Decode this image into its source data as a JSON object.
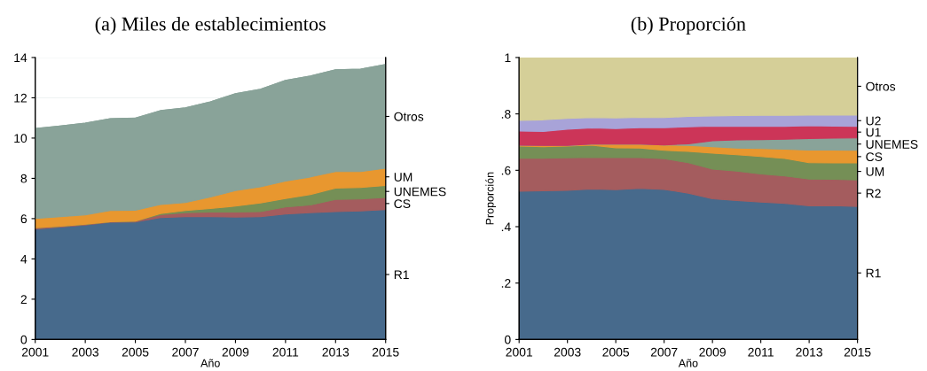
{
  "chart_data": [
    {
      "type": "area",
      "stacked": true,
      "title": "(a) Miles de establecimientos",
      "xlabel": "Año",
      "x": [
        2001,
        2002,
        2003,
        2004,
        2005,
        2006,
        2007,
        2008,
        2009,
        2010,
        2011,
        2012,
        2013,
        2014,
        2015
      ],
      "xlim": [
        2001,
        2015
      ],
      "xticks": [
        2001,
        2003,
        2005,
        2007,
        2009,
        2011,
        2013,
        2015
      ],
      "ylim": [
        0,
        14
      ],
      "yticks": [
        0,
        2,
        4,
        6,
        8,
        10,
        12,
        14
      ],
      "grid": "y",
      "series": [
        {
          "name": "R1",
          "color": "#476a8c",
          "values": [
            5.48,
            5.58,
            5.68,
            5.82,
            5.83,
            6.05,
            6.1,
            6.1,
            6.08,
            6.1,
            6.23,
            6.3,
            6.35,
            6.38,
            6.45
          ]
        },
        {
          "name": "CS",
          "color": "#a45c5e",
          "values": [
            0.07,
            0.04,
            0.04,
            0.03,
            0.05,
            0.15,
            0.2,
            0.23,
            0.25,
            0.25,
            0.35,
            0.38,
            0.6,
            0.6,
            0.6
          ]
        },
        {
          "name": "UNEMES",
          "color": "#758f56",
          "values": [
            0,
            0,
            0,
            0,
            0,
            0.05,
            0.1,
            0.17,
            0.29,
            0.43,
            0.42,
            0.52,
            0.57,
            0.57,
            0.6
          ]
        },
        {
          "name": "UM",
          "color": "#e8972f",
          "values": [
            0.46,
            0.48,
            0.47,
            0.55,
            0.54,
            0.45,
            0.4,
            0.57,
            0.77,
            0.8,
            0.87,
            0.87,
            0.82,
            0.79,
            0.85
          ]
        },
        {
          "name": "Otros",
          "color": "#89a399",
          "values": [
            4.46,
            4.5,
            4.55,
            4.56,
            4.57,
            4.66,
            4.7,
            4.73,
            4.81,
            4.84,
            4.99,
            5.01,
            5.05,
            5.08,
            5.15
          ]
        }
      ]
    },
    {
      "type": "area",
      "stacked": true,
      "title": "(b) Proporción",
      "xlabel": "Año",
      "ylabel": "Proporción",
      "x": [
        2001,
        2002,
        2003,
        2004,
        2005,
        2006,
        2007,
        2008,
        2009,
        2010,
        2011,
        2012,
        2013,
        2014,
        2015
      ],
      "xlim": [
        2001,
        2015
      ],
      "xticks": [
        2001,
        2003,
        2005,
        2007,
        2009,
        2011,
        2013,
        2015
      ],
      "ylim": [
        0,
        1
      ],
      "yticks": [
        0,
        {
          "value": 0.2,
          "label": ".2"
        },
        {
          "value": 0.4,
          "label": ".4"
        },
        {
          "value": 0.6,
          "label": ".6"
        },
        {
          "value": 0.8,
          "label": ".8"
        },
        1
      ],
      "grid": false,
      "series": [
        {
          "name": "R1",
          "color": "#476a8c",
          "values": [
            0.526,
            0.527,
            0.529,
            0.534,
            0.531,
            0.536,
            0.532,
            0.519,
            0.499,
            0.493,
            0.487,
            0.483,
            0.474,
            0.475,
            0.472
          ]
        },
        {
          "name": "R2",
          "color": "#a45c5e",
          "values": [
            0.117,
            0.116,
            0.115,
            0.112,
            0.114,
            0.109,
            0.109,
            0.108,
            0.105,
            0.104,
            0.1,
            0.097,
            0.095,
            0.093,
            0.094
          ]
        },
        {
          "name": "UM",
          "color": "#758f56",
          "values": [
            0.043,
            0.041,
            0.042,
            0.043,
            0.035,
            0.034,
            0.03,
            0.04,
            0.057,
            0.058,
            0.062,
            0.062,
            0.058,
            0.058,
            0.06
          ]
        },
        {
          "name": "CS",
          "color": "#e8972f",
          "values": [
            0.003,
            0.004,
            0.002,
            0.004,
            0.013,
            0.014,
            0.019,
            0.021,
            0.023,
            0.024,
            0.028,
            0.033,
            0.045,
            0.046,
            0.045
          ]
        },
        {
          "name": "UNEMES",
          "color": "#89a399",
          "values": [
            0,
            0,
            0,
            0,
            0,
            0,
            0,
            0.006,
            0.021,
            0.029,
            0.032,
            0.035,
            0.041,
            0.042,
            0.044
          ]
        },
        {
          "name": "U1",
          "color": "#cc3558",
          "values": [
            0.05,
            0.05,
            0.058,
            0.057,
            0.055,
            0.058,
            0.061,
            0.06,
            0.052,
            0.048,
            0.047,
            0.046,
            0.045,
            0.043,
            0.041
          ]
        },
        {
          "name": "U2",
          "color": "#a8a3d8",
          "values": [
            0.038,
            0.041,
            0.038,
            0.037,
            0.038,
            0.037,
            0.036,
            0.037,
            0.036,
            0.038,
            0.039,
            0.039,
            0.038,
            0.039,
            0.04
          ]
        },
        {
          "name": "Otros",
          "color": "#d5cf98",
          "values": [
            0.223,
            0.221,
            0.216,
            0.213,
            0.214,
            0.212,
            0.213,
            0.209,
            0.207,
            0.206,
            0.205,
            0.205,
            0.204,
            0.204,
            0.204
          ]
        }
      ]
    }
  ]
}
